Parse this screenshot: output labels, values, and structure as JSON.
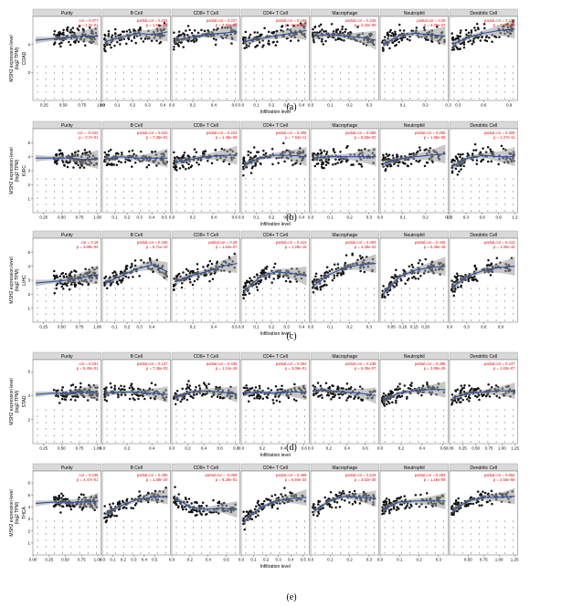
{
  "figure": {
    "xlabel": "Infiltration level",
    "ylabel": "MSH2 expression level\n(log2 TPM)",
    "cells": [
      "Purity",
      "B Cell",
      "CD8+ T Cell",
      "CD4+ T Cell",
      "Macrophage",
      "Neutrophil",
      "Dendritic Cell"
    ]
  },
  "chart_data": [
    {
      "type": "scatter",
      "panel": "(a)",
      "cancer": "COAD",
      "ylim": [
        0,
        6
      ],
      "yticks": [
        2,
        4
      ],
      "facets": [
        {
          "cell": "Purity",
          "xlim": [
            0.1,
            1.0
          ],
          "xticks": [
            "0.25",
            "0.50",
            "0.75",
            "1.00"
          ],
          "ann": [
            "cor = 0.077",
            "p = 1.2e-01"
          ],
          "trend": [
            4.3,
            4.4,
            4.5,
            4.6,
            4.6
          ]
        },
        {
          "cell": "B Cell",
          "xlim": [
            0.0,
            0.45
          ],
          "xticks": [
            "0.0",
            "0.1",
            "0.2",
            "0.3",
            "0.4"
          ],
          "ann": [
            "partial.cor = 0.234",
            "p = 1.98e-06"
          ],
          "trend": [
            4.2,
            4.5,
            4.8,
            4.7,
            4.9
          ]
        },
        {
          "cell": "CD8+ T Cell",
          "xlim": [
            0.0,
            0.65
          ],
          "xticks": [
            "0.0",
            "0.2",
            "0.4",
            "0.6"
          ],
          "ann": [
            "partial.cor = 0.227",
            "p = 3.60e-06"
          ],
          "trend": [
            4.3,
            4.5,
            4.7,
            4.8,
            4.9
          ]
        },
        {
          "cell": "CD4+ T Cell",
          "xlim": [
            0.0,
            0.45
          ],
          "xticks": [
            "0.0",
            "0.1",
            "0.2",
            "0.3",
            "0.4"
          ],
          "ann": [
            "partial.cor = 0.199",
            "p = 5.08e-05"
          ],
          "trend": [
            4.2,
            4.4,
            4.6,
            4.8,
            5.0
          ]
        },
        {
          "cell": "Macrophage",
          "xlim": [
            0.0,
            0.35
          ],
          "xticks": [
            "0.0",
            "0.1",
            "0.2",
            "0.3"
          ],
          "ann": [
            "partial.cor = 0.228",
            "p = 3.32e-06"
          ],
          "trend": [
            4.6,
            4.7,
            4.6,
            4.5,
            4.3
          ]
        },
        {
          "cell": "Neutrophil",
          "xlim": [
            0.0,
            0.3
          ],
          "xticks": [
            "0.1",
            "0.2",
            "0.3"
          ],
          "ann": [
            "partial.cor = 0.25",
            "p = 4.08e-07"
          ],
          "trend": [
            4.0,
            4.6,
            4.8,
            4.7,
            4.6
          ]
        },
        {
          "cell": "Dendritic Cell",
          "xlim": [
            0.2,
            1.0
          ],
          "xticks": [
            "0.3",
            "0.6",
            "0.9"
          ],
          "ann": [
            "partial.cor = 0.235",
            "p = 7.26e-06"
          ],
          "trend": [
            4.0,
            4.5,
            4.8,
            5.0,
            5.1
          ]
        }
      ]
    },
    {
      "type": "scatter",
      "panel": "(b)",
      "cancer": "KIRC",
      "ylim": [
        0,
        6
      ],
      "yticks": [
        1,
        2,
        3,
        4,
        5
      ],
      "facets": [
        {
          "cell": "Purity",
          "xlim": [
            0.1,
            1.05
          ],
          "xticks": [
            "0.25",
            "0.50",
            "0.75",
            "1.00"
          ],
          "ann": [
            "cor = -0.042",
            "p = 3.7e-01"
          ],
          "trend": [
            3.9,
            3.9,
            3.9,
            3.8,
            3.8
          ]
        },
        {
          "cell": "B Cell",
          "xlim": [
            0.0,
            0.55
          ],
          "xticks": [
            "0.1",
            "0.2",
            "0.3",
            "0.4",
            "0.5"
          ],
          "ann": [
            "partial.cor = 0.022",
            "p = 7.35e-01"
          ],
          "trend": [
            3.8,
            4.0,
            3.9,
            3.9,
            3.9
          ]
        },
        {
          "cell": "CD8+ T Cell",
          "xlim": [
            0.0,
            0.65
          ],
          "xticks": [
            "0.0",
            "0.2",
            "0.4",
            "0.6"
          ],
          "ann": [
            "partial.cor = 0.223",
            "p = 1.45e-06"
          ],
          "trend": [
            3.6,
            3.8,
            4.0,
            4.1,
            4.1
          ]
        },
        {
          "cell": "CD4+ T Cell",
          "xlim": [
            0.0,
            0.45
          ],
          "xticks": [
            "0.0",
            "0.1",
            "0.2",
            "0.3",
            "0.4"
          ],
          "ann": [
            "partial.cor = 0.298",
            "p = 7.64e-11"
          ],
          "trend": [
            3.4,
            3.9,
            4.1,
            4.1,
            4.0
          ]
        },
        {
          "cell": "Macrophage",
          "xlim": [
            0.0,
            0.35
          ],
          "xticks": [
            "0.0",
            "0.1",
            "0.2",
            "0.3"
          ],
          "ann": [
            "partial.cor = 0.086",
            "p = 6.55e-02"
          ],
          "trend": [
            3.9,
            4.0,
            4.0,
            4.0,
            4.0
          ]
        },
        {
          "cell": "Neutrophil",
          "xlim": [
            0.0,
            0.3
          ],
          "xticks": [
            "0.0",
            "0.1",
            "0.2",
            "0.3"
          ],
          "ann": [
            "partial.cor = 0.258",
            "p = 1.85e-08"
          ],
          "trend": [
            3.5,
            3.8,
            4.0,
            4.1,
            4.2
          ]
        },
        {
          "cell": "Dendritic Cell",
          "xlim": [
            0.0,
            1.25
          ],
          "xticks": [
            "0.0",
            "0.3",
            "0.6",
            "0.9",
            "1.2"
          ],
          "ann": [
            "partial.cor = 0.309",
            "p = 1.27e-11"
          ],
          "trend": [
            3.3,
            3.9,
            4.1,
            4.0,
            4.0
          ]
        }
      ]
    },
    {
      "type": "scatter",
      "panel": "(c)",
      "cancer": "LIHC",
      "ylim": [
        0,
        6
      ],
      "yticks": [
        1,
        2,
        3,
        4,
        5
      ],
      "facets": [
        {
          "cell": "Purity",
          "xlim": [
            0.1,
            1.05
          ],
          "xticks": [
            "0.25",
            "0.50",
            "0.75",
            "1.00"
          ],
          "ann": [
            "cor = 0.19",
            "p = 3.88e-04"
          ],
          "trend": [
            2.8,
            2.9,
            3.0,
            3.2,
            3.4
          ]
        },
        {
          "cell": "B Cell",
          "xlim": [
            0.0,
            0.55
          ],
          "xticks": [
            "0.1",
            "0.2",
            "0.3",
            "0.4"
          ],
          "ann": [
            "partial.cor = 0.325",
            "p = 6.71e-10"
          ],
          "trend": [
            2.8,
            3.3,
            3.8,
            4.1,
            3.6
          ]
        },
        {
          "cell": "CD8+ T Cell",
          "xlim": [
            0.0,
            0.65
          ],
          "xticks": [
            "0.2",
            "0.4",
            "0.6"
          ],
          "ann": [
            "partial.cor = 0.28",
            "p = 1.54e-07"
          ],
          "trend": [
            2.9,
            3.3,
            3.6,
            4.0,
            4.2
          ]
        },
        {
          "cell": "CD4+ T Cell",
          "xlim": [
            0.0,
            0.45
          ],
          "xticks": [
            "0.0",
            "0.1",
            "0.2",
            "0.3",
            "0.4"
          ],
          "ann": [
            "partial.cor = 0.413",
            "p = 1.28e-15"
          ],
          "trend": [
            2.2,
            3.2,
            3.6,
            3.5,
            3.3
          ]
        },
        {
          "cell": "Macrophage",
          "xlim": [
            0.0,
            0.35
          ],
          "xticks": [
            "0.0",
            "0.1",
            "0.2",
            "0.3"
          ],
          "ann": [
            "partial.cor = 0.493",
            "p = 3.28e-22"
          ],
          "trend": [
            2.6,
            3.4,
            3.9,
            4.1,
            4.2
          ]
        },
        {
          "cell": "Neutrophil",
          "xlim": [
            0.0,
            0.3
          ],
          "xticks": [
            "0.05",
            "0.10",
            "0.15",
            "0.20"
          ],
          "ann": [
            "partial.cor = 0.445",
            "p = 5.49e-18"
          ],
          "trend": [
            2.0,
            3.2,
            3.7,
            3.9,
            4.0
          ]
        },
        {
          "cell": "Dendritic Cell",
          "xlim": [
            0.0,
            1.2
          ],
          "xticks": [
            "0.0",
            "0.3",
            "0.6",
            "0.9"
          ],
          "ann": [
            "partial.cor = 0.413",
            "p = 1.40e-15"
          ],
          "trend": [
            2.5,
            3.3,
            3.7,
            3.9,
            4.0
          ]
        }
      ]
    },
    {
      "type": "scatter",
      "panel": "(d)",
      "cancer": "STAD",
      "ylim": [
        0,
        7
      ],
      "yticks": [
        2,
        4,
        6
      ],
      "facets": [
        {
          "cell": "Purity",
          "xlim": [
            0.1,
            1.05
          ],
          "xticks": [
            "0.25",
            "0.50",
            "0.75",
            "1.00"
          ],
          "ann": [
            "cor = 0.031",
            "p = 5.40e-01"
          ],
          "trend": [
            4.1,
            4.2,
            4.2,
            4.3,
            4.3
          ]
        },
        {
          "cell": "B Cell",
          "xlim": [
            0.0,
            0.55
          ],
          "xticks": [
            "0.0",
            "0.2",
            "0.4"
          ],
          "ann": [
            "partial.cor = 0.137",
            "p = 7.36e-03"
          ],
          "trend": [
            4.2,
            4.3,
            4.3,
            4.2,
            4.1
          ]
        },
        {
          "cell": "CD8+ T Cell",
          "xlim": [
            0.0,
            0.85
          ],
          "xticks": [
            "0.0",
            "0.2",
            "0.4",
            "0.6",
            "0.8"
          ],
          "ann": [
            "partial.cor = 0.435",
            "p = 1.14e-18"
          ],
          "trend": [
            3.8,
            4.3,
            4.4,
            4.3,
            4.1
          ]
        },
        {
          "cell": "CD4+ T Cell",
          "xlim": [
            0.0,
            0.65
          ],
          "xticks": [
            "0.0",
            "0.2",
            "0.4",
            "0.6"
          ],
          "ann": [
            "partial.cor = 0.052",
            "p = 3.08e-01"
          ],
          "trend": [
            4.2,
            4.3,
            4.2,
            4.3,
            4.3
          ]
        },
        {
          "cell": "Macrophage",
          "xlim": [
            0.0,
            0.75
          ],
          "xticks": [
            "0.0",
            "0.2",
            "0.4",
            "0.6"
          ],
          "ann": [
            "partial.cor = 0.238",
            "p = 6.08e-07"
          ],
          "trend": [
            4.5,
            4.4,
            4.3,
            4.2,
            4.0
          ]
        },
        {
          "cell": "Neutrophil",
          "xlim": [
            0.0,
            0.65
          ],
          "xticks": [
            "0.0",
            "0.2",
            "0.4",
            "0.6"
          ],
          "ann": [
            "partial.cor = 0.468",
            "p = 3.99e-26"
          ],
          "trend": [
            3.6,
            4.2,
            4.4,
            4.5,
            4.5
          ]
        },
        {
          "cell": "Dendritic Cell",
          "xlim": [
            0.0,
            1.3
          ],
          "xticks": [
            "0.00",
            "0.25",
            "0.50",
            "0.75",
            "1.00",
            "1.25"
          ],
          "ann": [
            "partial.cor = 0.247",
            "p = 1.63e-07"
          ],
          "trend": [
            3.8,
            4.2,
            4.3,
            4.4,
            4.4
          ]
        }
      ]
    },
    {
      "type": "scatter",
      "panel": "(e)",
      "cancer": "THCA",
      "ylim": [
        0,
        7
      ],
      "yticks": [
        1,
        2,
        3,
        4,
        5,
        6
      ],
      "facets": [
        {
          "cell": "Purity",
          "xlim": [
            0.0,
            1.05
          ],
          "xticks": [
            "0.00",
            "0.25",
            "0.50",
            "0.75",
            "1.00"
          ],
          "ann": [
            "cor = 0.035",
            "p = 4.47e-01"
          ],
          "trend": [
            4.3,
            4.4,
            4.4,
            4.4,
            4.5
          ]
        },
        {
          "cell": "B Cell",
          "xlim": [
            0.0,
            0.65
          ],
          "xticks": [
            "0.0",
            "0.1",
            "0.2",
            "0.3",
            "0.4",
            "0.5"
          ],
          "ann": [
            "partial.cor = 0.406",
            "p = 1.68e-20"
          ],
          "trend": [
            3.4,
            4.1,
            4.6,
            4.8,
            4.9
          ]
        },
        {
          "cell": "CD8+ T Cell",
          "xlim": [
            0.0,
            0.75
          ],
          "xticks": [
            "0.0",
            "0.2",
            "0.4",
            "0.6"
          ],
          "ann": [
            "partial.cor = -0.009",
            "p = 8.28e-01"
          ],
          "trend": [
            4.8,
            4.0,
            3.8,
            3.9,
            3.8
          ]
        },
        {
          "cell": "CD4+ T Cell",
          "xlim": [
            0.0,
            0.55
          ],
          "xticks": [
            "0.0",
            "0.1",
            "0.2",
            "0.3",
            "0.4",
            "0.5"
          ],
          "ann": [
            "partial.cor = 0.499",
            "p = 6.94e-34"
          ],
          "trend": [
            2.8,
            3.9,
            4.5,
            4.7,
            4.8
          ]
        },
        {
          "cell": "Macrophage",
          "xlim": [
            0.0,
            0.35
          ],
          "xticks": [
            "0.0",
            "0.1",
            "0.2",
            "0.3"
          ],
          "ann": [
            "partial.cor = 0.519",
            "p = 3.62e-35"
          ],
          "trend": [
            3.6,
            4.5,
            4.9,
            4.8,
            4.7
          ]
        },
        {
          "cell": "Neutrophil",
          "xlim": [
            0.0,
            0.35
          ],
          "xticks": [
            "0.0",
            "0.1",
            "0.2",
            "0.3"
          ],
          "ann": [
            "partial.cor = 0.293",
            "p = 1.16e-09"
          ],
          "trend": [
            3.8,
            4.4,
            4.5,
            4.5,
            4.5
          ]
        },
        {
          "cell": "Dendritic Cell",
          "xlim": [
            0.2,
            1.3
          ],
          "xticks": [
            "0.50",
            "0.75",
            "1.00",
            "1.25"
          ],
          "ann": [
            "partial.cor = 0.652",
            "p = 2.55e-58"
          ],
          "trend": [
            3.7,
            4.5,
            4.8,
            4.8,
            4.9
          ]
        }
      ]
    }
  ]
}
